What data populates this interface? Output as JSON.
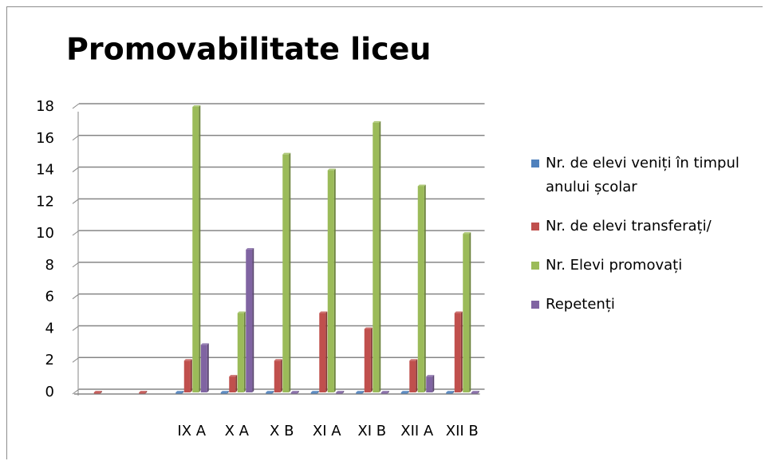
{
  "chart_data": {
    "type": "bar",
    "title": "Promovabilitate liceu",
    "categories": [
      null,
      null,
      "IX A",
      "X A",
      "X B",
      "XI A",
      "XI B",
      "XII A",
      "XII B"
    ],
    "series": [
      {
        "name": "Nr. de elevi veniți în timpul anului școlar",
        "color": "#4f81bd",
        "values": [
          null,
          null,
          0,
          0,
          0,
          0,
          0,
          0,
          0
        ]
      },
      {
        "name": "Nr. de elevi transferați/",
        "color": "#c0504d",
        "values": [
          0,
          0,
          2,
          1,
          2,
          5,
          4,
          2,
          5
        ]
      },
      {
        "name": "Nr. Elevi promovați",
        "color": "#9bbb59",
        "values": [
          null,
          null,
          18,
          5,
          15,
          14,
          17,
          13,
          10
        ]
      },
      {
        "name": "Repetenți",
        "color": "#8064a2",
        "values": [
          null,
          null,
          3,
          9,
          0,
          0,
          0,
          1,
          0
        ]
      }
    ],
    "ylim": [
      0,
      18
    ],
    "yticks": [
      0,
      2,
      4,
      6,
      8,
      10,
      12,
      14,
      16,
      18
    ],
    "grid": true,
    "legend": "right"
  }
}
